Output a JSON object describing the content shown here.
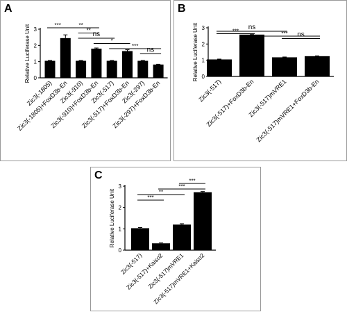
{
  "panels": [
    {
      "letter": "A"
    },
    {
      "letter": "B"
    },
    {
      "letter": "C"
    }
  ],
  "chart_data": [
    {
      "type": "bar",
      "panel": "A",
      "ylabel": "Relative Luciferase Unit",
      "xlabel": "",
      "ylim": [
        0,
        3
      ],
      "yticks": [
        0,
        1,
        2,
        3
      ],
      "categories": [
        "Zic3(-1805)",
        "Zic3(-1805)+FoxD3b-En",
        "Zic3(-910)",
        "Zic3(-910)+FoxD3b-En",
        "Zic3(-517)",
        "Zic3(-517)+FoxD3b-En",
        "Zic3(-297)",
        "Zic3(-297)+FoxD3b-En"
      ],
      "values": [
        1.05,
        2.45,
        1.05,
        1.8,
        1.05,
        1.65,
        1.05,
        0.82
      ],
      "errors": [
        0.02,
        0.2,
        0.02,
        0.04,
        0.02,
        0.08,
        0.02,
        0.02
      ],
      "significance": [
        {
          "from": 0,
          "to": 1,
          "label": "***",
          "level": 0
        },
        {
          "from": 1,
          "to": 3,
          "label": "**",
          "level": 0
        },
        {
          "from": 2,
          "to": 3,
          "label": "**",
          "level": 1
        },
        {
          "from": 2,
          "to": 4,
          "label": "ns",
          "level": 2
        },
        {
          "from": 3,
          "to": 5,
          "label": "*",
          "level": 3
        },
        {
          "from": 4,
          "to": 7,
          "label": "***",
          "level": 4
        },
        {
          "from": 6,
          "to": 7,
          "label": "ns",
          "level": 5
        }
      ]
    },
    {
      "type": "bar",
      "panel": "B",
      "ylabel": "Relative Luciferase Unit",
      "xlabel": "",
      "ylim": [
        0,
        3
      ],
      "yticks": [
        0,
        1,
        2,
        3
      ],
      "categories": [
        "Zic3(-517)",
        "Zic3(-517)+FoxD3b-En",
        "Zic3(-517)mVRE1",
        "Zic3(-517)mVRE1+FoxD3b-En"
      ],
      "values": [
        1.05,
        2.58,
        1.18,
        1.25
      ],
      "errors": [
        0.02,
        0.03,
        0.02,
        0.02
      ],
      "significance": [
        {
          "from": 0,
          "to": 2,
          "label": "ns",
          "level": 0
        },
        {
          "from": 0,
          "to": 1,
          "label": "***",
          "level": 1
        },
        {
          "from": 1,
          "to": 3,
          "label": "***",
          "level": 2
        },
        {
          "from": 2,
          "to": 3,
          "label": "ns",
          "level": 3
        }
      ]
    },
    {
      "type": "bar",
      "panel": "C",
      "ylabel": "Relative Luciferase Unit",
      "xlabel": "",
      "ylim": [
        0,
        3
      ],
      "yticks": [
        0,
        1,
        2,
        3
      ],
      "categories": [
        "Zic3(-517)",
        "Zic3(-517)+Kaiso2",
        "Zic3(-517)mVRE1",
        "Zic3(-517)mVRE1+Kaiso2"
      ],
      "values": [
        1.03,
        0.32,
        1.2,
        2.72
      ],
      "errors": [
        0.03,
        0.02,
        0.04,
        0.03
      ],
      "significance": [
        {
          "from": 2,
          "to": 3,
          "label": "***",
          "level": 0
        },
        {
          "from": 1,
          "to": 3,
          "label": "***",
          "level": 1
        },
        {
          "from": 0,
          "to": 2,
          "label": "**",
          "level": 2
        },
        {
          "from": 0,
          "to": 1,
          "label": "***",
          "level": 3
        }
      ]
    }
  ]
}
